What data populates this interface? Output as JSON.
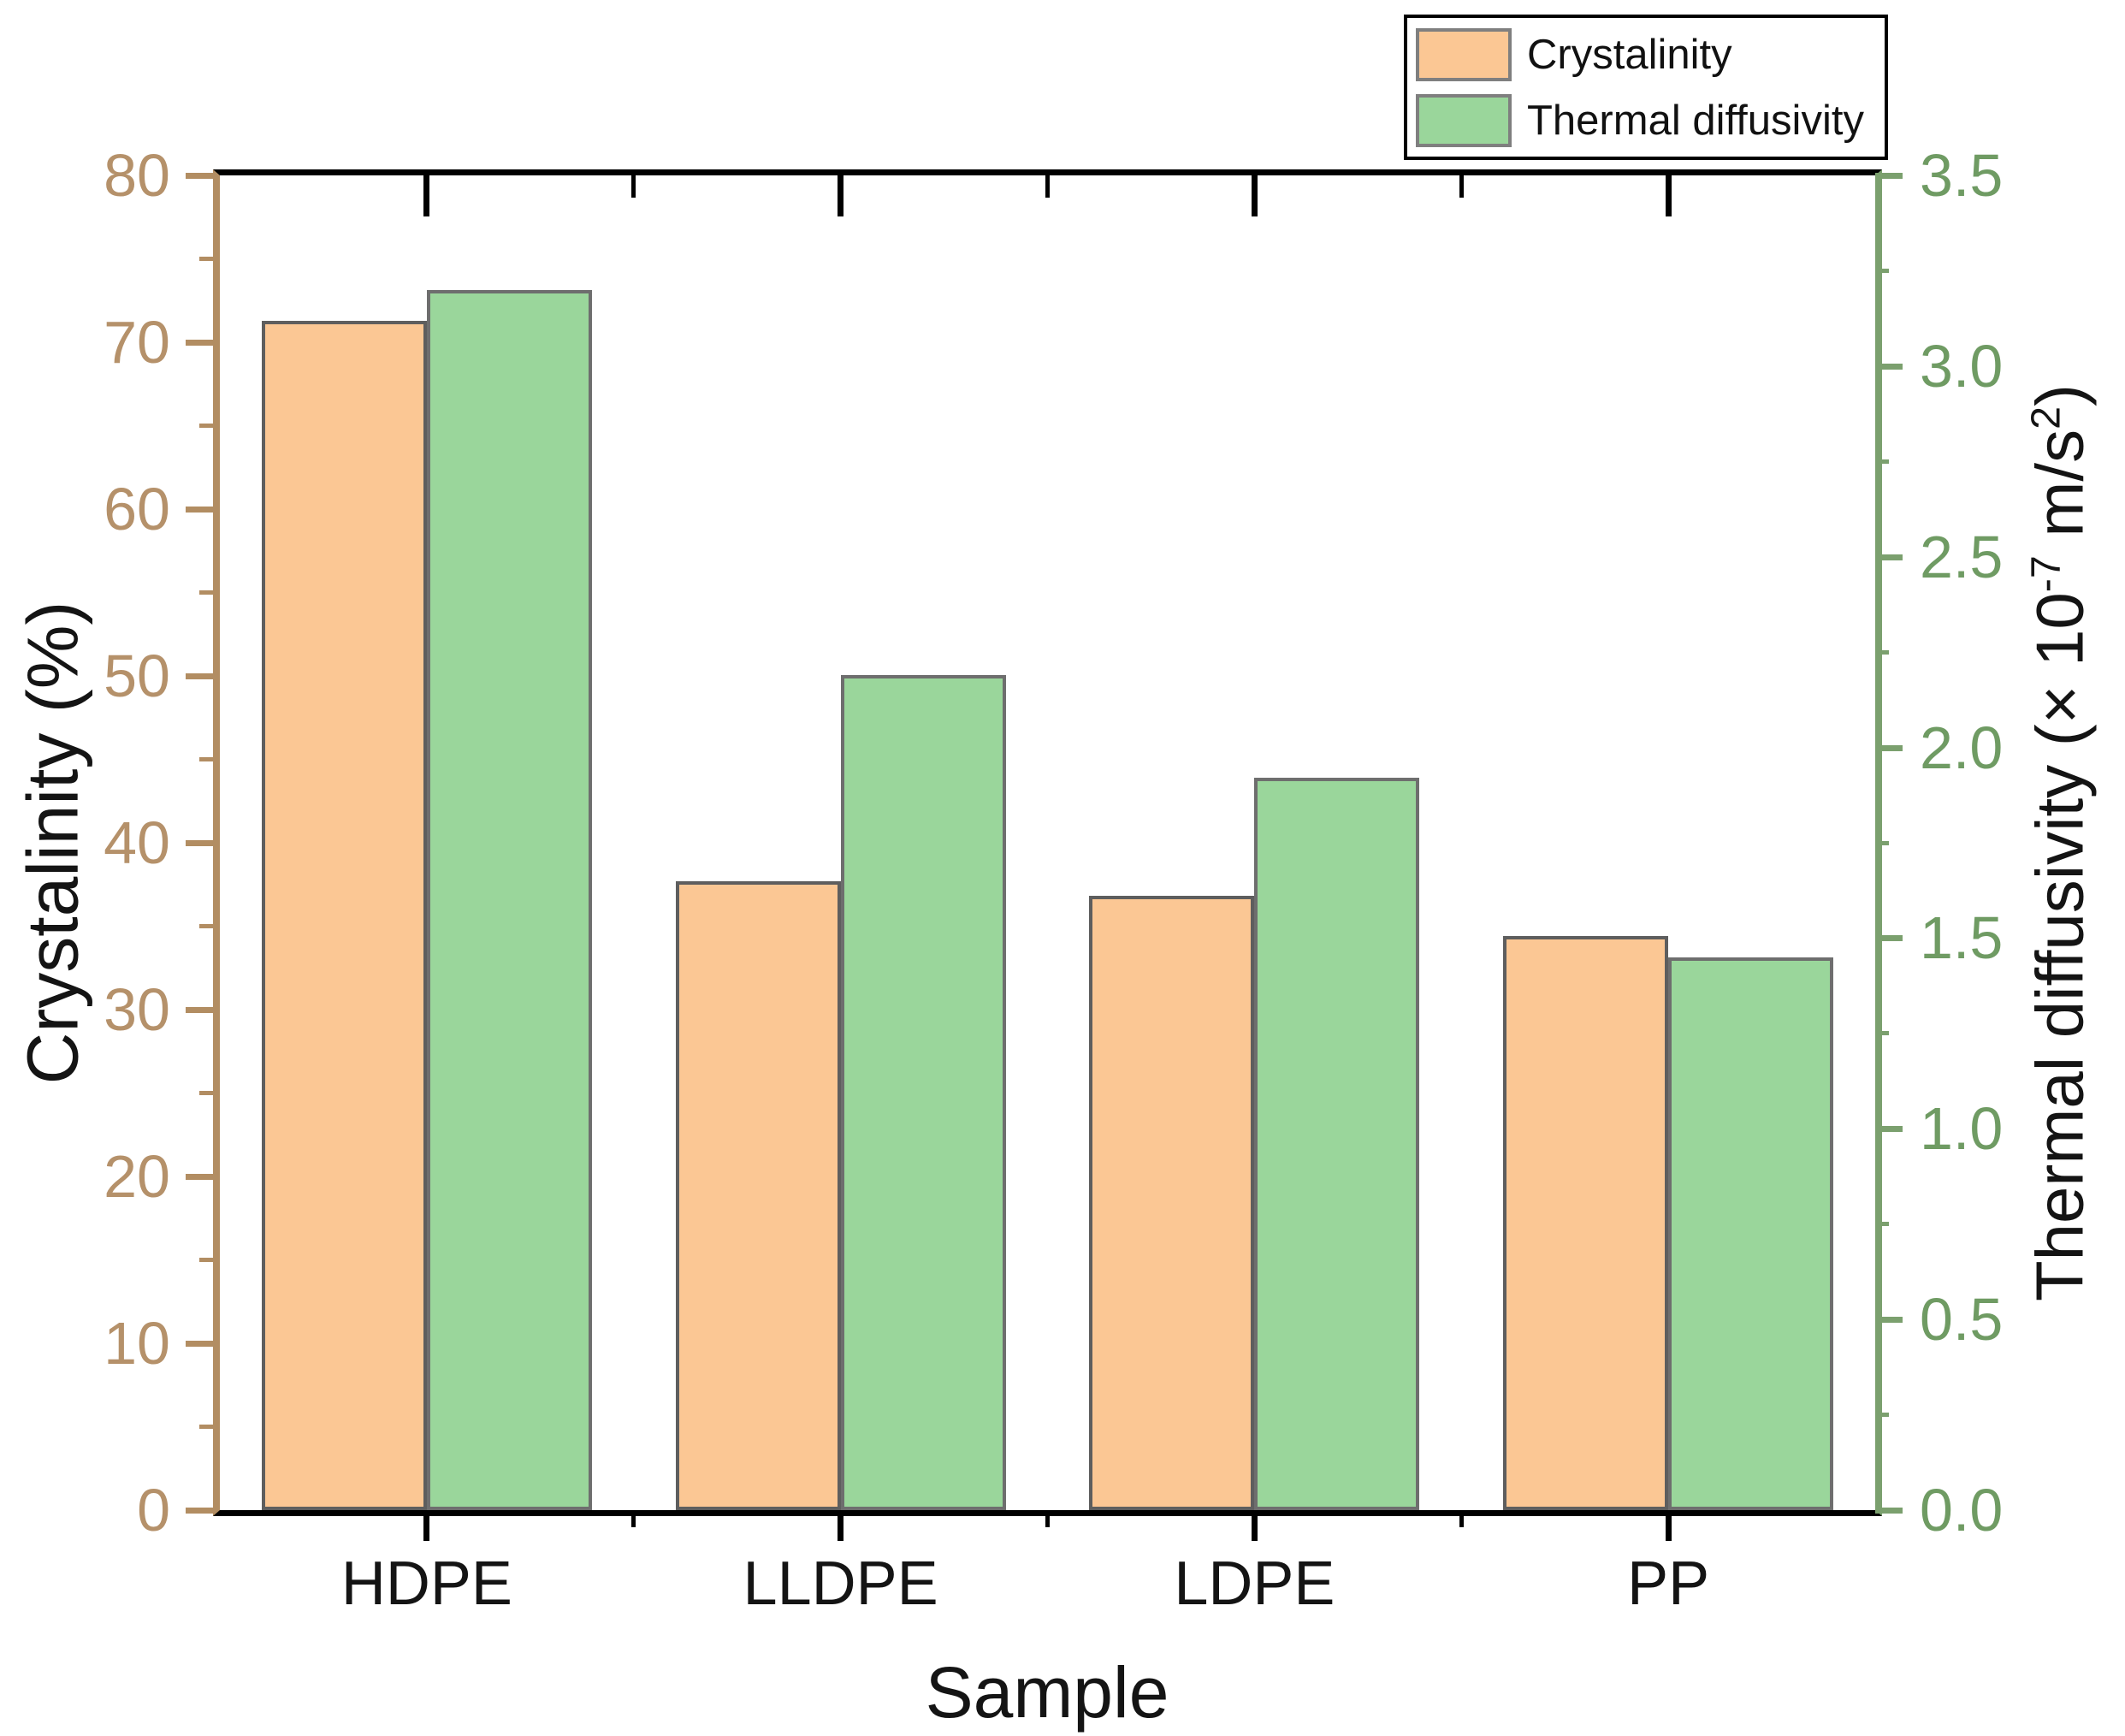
{
  "chart_data": {
    "type": "bar",
    "title": "",
    "categories": [
      "HDPE",
      "LLDPE",
      "LDPE",
      "PP"
    ],
    "series": [
      {
        "name": "Crystalinity",
        "axis": "left",
        "color": "#FBC794",
        "border_color": "#5e5e5e",
        "values": [
          71.3,
          37.7,
          36.8,
          34.4
        ]
      },
      {
        "name": "Thermal diffusivity",
        "axis": "right",
        "color": "#9AD69B",
        "border_color": "#6e6e6e",
        "values": [
          3.2,
          2.19,
          1.92,
          1.45
        ]
      }
    ],
    "xlabel": "Sample",
    "x_axis": {
      "color_line": "#000000",
      "color_text": "#141414"
    },
    "left_axis": {
      "label": "Crystalinity (%)",
      "min": 0,
      "max": 80,
      "major_step": 10,
      "minor_step": 5,
      "tick_labels": [
        "0",
        "10",
        "20",
        "30",
        "40",
        "50",
        "60",
        "70",
        "80"
      ],
      "color_line": "#B28D62",
      "color_text": "#B5916A"
    },
    "right_axis": {
      "label_parts": {
        "pre": "Thermal diffusivity (× 10",
        "sup1": "-7",
        "mid": " m/s",
        "sup2": "2",
        "post": ")"
      },
      "min": 0,
      "max": 3.5,
      "major_step": 0.5,
      "minor_step": 0.25,
      "tick_labels": [
        "0.0",
        "0.5",
        "1.0",
        "1.5",
        "2.0",
        "2.5",
        "3.0",
        "3.5"
      ],
      "color_line": "#7BA06E",
      "color_text": "#6F9B63"
    },
    "legend": {
      "position": "top-right",
      "items": [
        {
          "label": "Crystalinity",
          "color": "#FBC794"
        },
        {
          "label": "Thermal diffusivity",
          "color": "#9AD69B"
        }
      ]
    },
    "grid": false
  }
}
